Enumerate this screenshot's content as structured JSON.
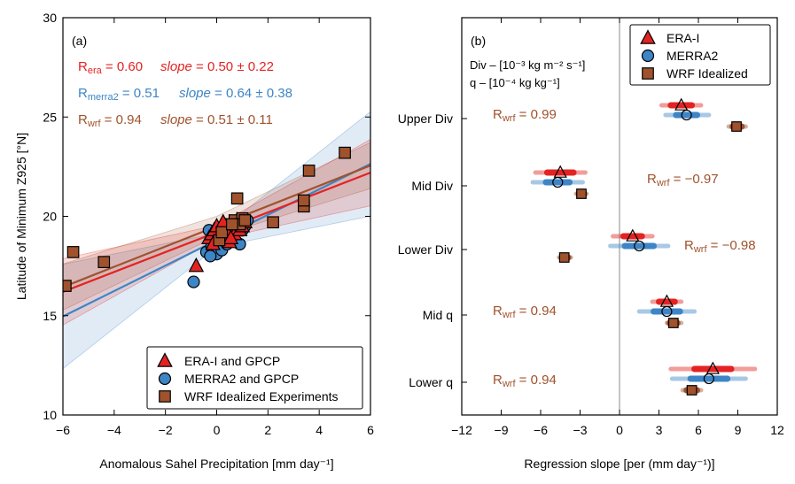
{
  "colors": {
    "era": "#e32322",
    "merra2": "#3d85c6",
    "wrf": "#a0522d",
    "wrf_text": "#a0522d",
    "axis": "#000000",
    "zero_line": "#888888"
  },
  "chart_data": [
    {
      "type": "scatter",
      "panel_label": "(a)",
      "xlabel": "Anomalous Sahel Precipitation [mm day⁻¹]",
      "ylabel": "Latitude of Minimum Z925 [°N]",
      "xlim": [
        -6,
        6
      ],
      "ylim": [
        10,
        30
      ],
      "xticks": [
        -6,
        -4,
        -2,
        0,
        2,
        4,
        6
      ],
      "xtick_labels": [
        "−6",
        "−4",
        "−2",
        "0",
        "2",
        "4",
        "6"
      ],
      "yticks": [
        10,
        15,
        20,
        25,
        30
      ],
      "ytick_labels": [
        "10",
        "15",
        "20",
        "25",
        "30"
      ],
      "stats": [
        {
          "r_base": "R",
          "r_sub": "era",
          "r_value": " = 0.60",
          "slope_label": "slope",
          "slope_value": " = 0.50 ± 0.22",
          "color_key": "era"
        },
        {
          "r_base": "R",
          "r_sub": "merra2",
          "r_value": " = 0.51",
          "slope_label": "slope",
          "slope_value": " = 0.64 ± 0.38",
          "color_key": "merra2"
        },
        {
          "r_base": "R",
          "r_sub": "wrf",
          "r_value": " = 0.94",
          "slope_label": "slope",
          "slope_value": " = 0.51 ± 0.11",
          "color_key": "wrf"
        }
      ],
      "fits": [
        {
          "name": "era",
          "intercept": 19.2,
          "slope": 0.5,
          "band_halfwidth_center": 0.35,
          "band_slope_unc": 0.22
        },
        {
          "name": "merra2",
          "intercept": 18.8,
          "slope": 0.64,
          "band_halfwidth_center": 0.35,
          "band_slope_unc": 0.38
        },
        {
          "name": "wrf",
          "intercept": 19.5,
          "slope": 0.51,
          "band_halfwidth_center": 0.5,
          "band_slope_unc": 0.11
        }
      ],
      "series": [
        {
          "name": "ERA-I and GPCP",
          "marker": "triangle",
          "color_key": "era",
          "points": [
            [
              -0.8,
              17.5
            ],
            [
              -0.3,
              18.9
            ],
            [
              -0.2,
              19.1
            ],
            [
              -0.1,
              19.3
            ],
            [
              0.0,
              19.5
            ],
            [
              0.1,
              18.8
            ],
            [
              0.2,
              19.0
            ],
            [
              0.3,
              19.4
            ],
            [
              0.4,
              19.2
            ],
            [
              0.5,
              18.7
            ],
            [
              0.6,
              19.6
            ],
            [
              0.7,
              19.1
            ],
            [
              0.8,
              19.8
            ],
            [
              0.9,
              19.3
            ],
            [
              1.0,
              19.5
            ],
            [
              1.1,
              19.7
            ],
            [
              -0.15,
              18.6
            ],
            [
              0.25,
              19.7
            ],
            [
              0.55,
              18.9
            ]
          ]
        },
        {
          "name": "MERRA2 and GPCP",
          "marker": "circle",
          "color_key": "merra2",
          "points": [
            [
              -0.9,
              16.7
            ],
            [
              -0.4,
              18.2
            ],
            [
              -0.3,
              19.3
            ],
            [
              -0.2,
              18.5
            ],
            [
              -0.1,
              19.0
            ],
            [
              0.0,
              18.1
            ],
            [
              0.1,
              18.8
            ],
            [
              0.2,
              18.3
            ],
            [
              0.3,
              19.2
            ],
            [
              0.4,
              18.6
            ],
            [
              0.5,
              19.5
            ],
            [
              0.6,
              18.9
            ],
            [
              0.7,
              19.4
            ],
            [
              0.8,
              19.7
            ],
            [
              0.9,
              18.6
            ],
            [
              1.0,
              19.3
            ],
            [
              1.1,
              19.5
            ],
            [
              1.2,
              19.8
            ],
            [
              -0.25,
              18.0
            ],
            [
              0.35,
              19.6
            ]
          ]
        },
        {
          "name": "WRF Idealized Experiments",
          "marker": "square",
          "color_key": "wrf",
          "points": [
            [
              -5.9,
              16.5
            ],
            [
              -5.6,
              18.2
            ],
            [
              -4.4,
              17.7
            ],
            [
              0.8,
              20.9
            ],
            [
              0.7,
              19.8
            ],
            [
              1.0,
              19.9
            ],
            [
              0.9,
              19.6
            ],
            [
              1.1,
              19.8
            ],
            [
              2.2,
              19.7
            ],
            [
              3.4,
              20.5
            ],
            [
              3.4,
              20.8
            ],
            [
              3.6,
              22.3
            ],
            [
              5.0,
              23.2
            ],
            [
              0.1,
              18.8
            ],
            [
              0.2,
              19.2
            ],
            [
              0.6,
              19.6
            ]
          ]
        }
      ],
      "legend": [
        "ERA-I and GPCP",
        "MERRA2 and GPCP",
        "WRF Idealized Experiments"
      ],
      "legend_position": "lower-right"
    },
    {
      "type": "forest",
      "panel_label": "(b)",
      "xlabel": "Regression slope [per (mm day⁻¹)]",
      "xlim": [
        -12,
        12
      ],
      "xticks": [
        -12,
        -9,
        -6,
        -3,
        0,
        3,
        6,
        9,
        12
      ],
      "xtick_labels": [
        "−12",
        "−9",
        "−6",
        "−3",
        "0",
        "3",
        "6",
        "9",
        "12"
      ],
      "units_line1": "Div – [10⁻³ kg m⁻² s⁻¹]",
      "units_line2": "q – [10⁻⁴ kg kg⁻¹]",
      "categories": [
        "Upper Div",
        "Mid Div",
        "Lower Div",
        "Mid q",
        "Lower q"
      ],
      "series": [
        {
          "name": "ERA-I",
          "marker": "triangle",
          "color_key": "era",
          "values": [
            4.7,
            -4.5,
            1.0,
            3.6,
            7.1
          ],
          "ci95": [
            [
              3.2,
              6.2
            ],
            [
              -6.4,
              -2.6
            ],
            [
              -0.5,
              2.5
            ],
            [
              2.5,
              4.7
            ],
            [
              3.9,
              10.3
            ]
          ],
          "ci_inner": [
            [
              3.9,
              5.5
            ],
            [
              -5.5,
              -3.5
            ],
            [
              0.3,
              1.7
            ],
            [
              3.0,
              4.2
            ],
            [
              5.7,
              8.5
            ]
          ]
        },
        {
          "name": "MERRA2",
          "marker": "circle",
          "color_key": "merra2",
          "values": [
            5.1,
            -4.7,
            1.5,
            3.6,
            6.8
          ],
          "ci95": [
            [
              3.5,
              6.8
            ],
            [
              -6.6,
              -2.8
            ],
            [
              -0.7,
              3.7
            ],
            [
              1.5,
              5.7
            ],
            [
              4.0,
              9.6
            ]
          ],
          "ci_inner": [
            [
              4.3,
              5.9
            ],
            [
              -5.6,
              -3.8
            ],
            [
              0.4,
              2.6
            ],
            [
              2.6,
              4.6
            ],
            [
              5.4,
              8.2
            ]
          ]
        },
        {
          "name": "WRF Idealized",
          "marker": "square",
          "color_key": "wrf",
          "values": [
            8.9,
            -2.9,
            -4.2,
            4.1,
            5.5
          ],
          "ci95": [
            [
              8.3,
              9.6
            ],
            [
              -3.3,
              -2.5
            ],
            [
              -4.6,
              -3.7
            ],
            [
              3.6,
              4.7
            ],
            [
              4.8,
              6.2
            ]
          ],
          "ci_inner": [
            [
              8.6,
              9.3
            ],
            [
              -3.1,
              -2.7
            ],
            [
              -4.4,
              -3.9
            ],
            [
              3.8,
              4.4
            ],
            [
              5.1,
              5.9
            ]
          ]
        }
      ],
      "annotations": [
        {
          "category": "Upper Div",
          "base": "R",
          "sub": "wrf",
          "value": " = 0.99",
          "side": "left"
        },
        {
          "category": "Mid Div",
          "base": "R",
          "sub": "wrf",
          "value": " = −0.97",
          "side": "right"
        },
        {
          "category": "Lower Div",
          "base": "R",
          "sub": "wrf",
          "value": " = −0.98",
          "side": "right"
        },
        {
          "category": "Mid q",
          "base": "R",
          "sub": "wrf",
          "value": " = 0.94",
          "side": "left"
        },
        {
          "category": "Lower q",
          "base": "R",
          "sub": "wrf",
          "value": " = 0.94",
          "side": "left"
        }
      ],
      "legend": [
        "ERA-I",
        "MERRA2",
        "WRF Idealized"
      ],
      "legend_position": "top-right"
    }
  ]
}
